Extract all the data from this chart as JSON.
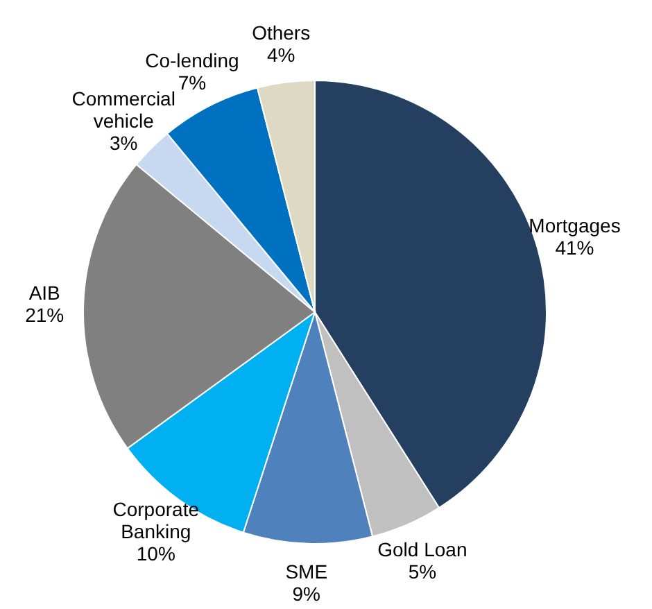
{
  "chart_data": {
    "type": "pie",
    "categories": [
      "Mortgages",
      "Gold Loan",
      "SME",
      "Corporate Banking",
      "AIB",
      "Commercial vehicle",
      "Co-lending",
      "Others"
    ],
    "values": [
      41,
      5,
      9,
      10,
      21,
      3,
      7,
      4
    ],
    "value_labels": [
      "41%",
      "5%",
      "9%",
      "10%",
      "21%",
      "3%",
      "7%",
      "4%"
    ],
    "colors": [
      "#243f60",
      "#c0c0c0",
      "#4f81bd",
      "#00b0f0",
      "#808080",
      "#c6d9f1",
      "#0070c0",
      "#ddd9c3"
    ]
  }
}
